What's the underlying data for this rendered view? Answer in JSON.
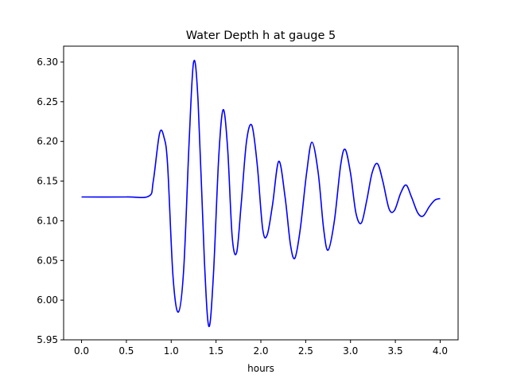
{
  "chart_data": {
    "type": "line",
    "title": "Water Depth h at gauge 5",
    "xlabel": "hours",
    "ylabel": "",
    "xlim": [
      -0.2,
      4.2
    ],
    "ylim": [
      5.95,
      6.32
    ],
    "xticks": [
      0.0,
      0.5,
      1.0,
      1.5,
      2.0,
      2.5,
      3.0,
      3.5,
      4.0
    ],
    "xtick_labels": [
      "0.0",
      "0.5",
      "1.0",
      "1.5",
      "2.0",
      "2.5",
      "3.0",
      "3.5",
      "4.0"
    ],
    "yticks": [
      5.95,
      6.0,
      6.05,
      6.1,
      6.15,
      6.2,
      6.25,
      6.3
    ],
    "ytick_labels": [
      "5.95",
      "6.00",
      "6.05",
      "6.10",
      "6.15",
      "6.20",
      "6.25",
      "6.30"
    ],
    "grid": false,
    "series": [
      {
        "color": "#0000ff",
        "x": [
          0.0,
          0.5,
          0.75,
          0.8,
          0.87,
          0.92,
          0.96,
          1.02,
          1.08,
          1.14,
          1.2,
          1.25,
          1.3,
          1.37,
          1.42,
          1.47,
          1.53,
          1.58,
          1.63,
          1.68,
          1.73,
          1.78,
          1.84,
          1.9,
          1.96,
          2.02,
          2.07,
          2.13,
          2.2,
          2.27,
          2.33,
          2.38,
          2.44,
          2.51,
          2.57,
          2.64,
          2.7,
          2.75,
          2.82,
          2.89,
          2.94,
          3.0,
          3.06,
          3.12,
          3.18,
          3.24,
          3.3,
          3.36,
          3.43,
          3.49,
          3.56,
          3.62,
          3.68,
          3.75,
          3.81,
          3.88,
          3.94,
          4.0
        ],
        "y": [
          6.13,
          6.13,
          6.131,
          6.15,
          6.21,
          6.205,
          6.17,
          6.03,
          5.985,
          6.04,
          6.2,
          6.3,
          6.25,
          6.05,
          5.967,
          6.03,
          6.18,
          6.24,
          6.19,
          6.08,
          6.06,
          6.12,
          6.2,
          6.22,
          6.17,
          6.09,
          6.082,
          6.12,
          6.175,
          6.13,
          6.07,
          6.053,
          6.09,
          6.16,
          6.199,
          6.16,
          6.09,
          6.063,
          6.1,
          6.17,
          6.19,
          6.16,
          6.11,
          6.097,
          6.125,
          6.16,
          6.172,
          6.15,
          6.115,
          6.113,
          6.135,
          6.145,
          6.13,
          6.11,
          6.106,
          6.118,
          6.126,
          6.128
        ]
      }
    ]
  }
}
